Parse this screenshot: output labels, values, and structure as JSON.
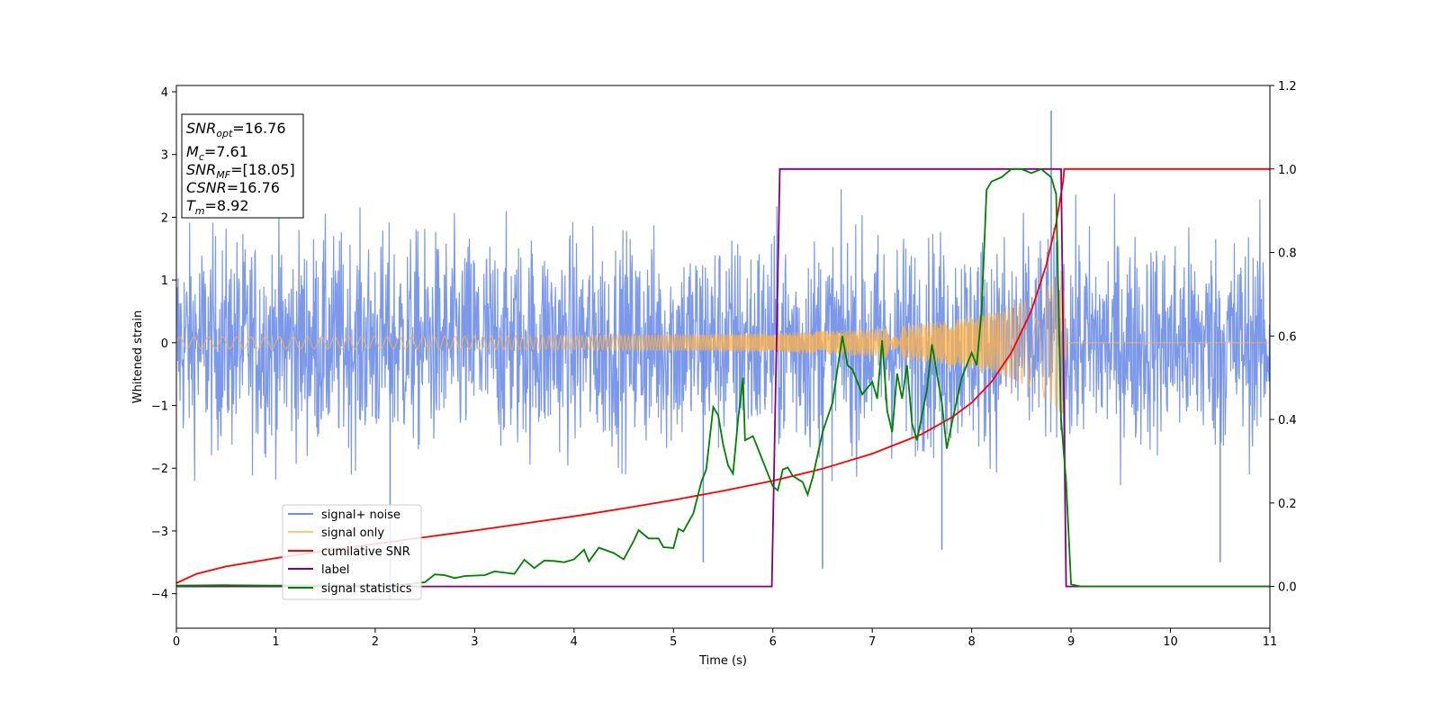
{
  "chart_data": {
    "type": "line",
    "xlabel": "Time (s)",
    "ylabel_left": "Whitened strain",
    "ylabel_right": "",
    "xlim": [
      0,
      11
    ],
    "ylim_left": [
      -4.55,
      4.1
    ],
    "ylim_right": [
      -0.1,
      1.2
    ],
    "x_ticks": [
      "0",
      "1",
      "2",
      "3",
      "4",
      "5",
      "6",
      "7",
      "8",
      "9",
      "10",
      "11"
    ],
    "y_ticks_left": [
      "−4",
      "−3",
      "−2",
      "−1",
      "0",
      "1",
      "2",
      "3",
      "4"
    ],
    "y_ticks_right": [
      "0.0",
      "0.2",
      "0.4",
      "0.6",
      "0.8",
      "1.0",
      "1.2"
    ],
    "grid": false,
    "legend_placement": "lower-left",
    "colors": {
      "signal_noise": "#6d8de8",
      "signal_only": "#ffb347",
      "cumulative_snr": "#ff0000",
      "label": "#800080",
      "signal_statistics": "#008000"
    },
    "series": [
      {
        "name": "signal+ noise",
        "axis": "left",
        "style": "dense noise, amplitude approx ±2.5 with spikes to 3.7",
        "spikes": [
          [
            2.15,
            -4.1
          ],
          [
            8.8,
            3.7
          ],
          [
            5.3,
            -3.5
          ],
          [
            6.5,
            -3.6
          ],
          [
            7.7,
            -3.3
          ],
          [
            10.5,
            -3.5
          ]
        ]
      },
      {
        "name": "signal only",
        "axis": "left",
        "style": "chirp oscillation",
        "envelope": [
          [
            0,
            0.09
          ],
          [
            2,
            0.1
          ],
          [
            4,
            0.11
          ],
          [
            6,
            0.15
          ],
          [
            7,
            0.22
          ],
          [
            7.8,
            0.36
          ],
          [
            8.3,
            0.52
          ],
          [
            8.6,
            0.72
          ],
          [
            8.8,
            0.95
          ],
          [
            8.92,
            1.2
          ],
          [
            8.95,
            0.0
          ],
          [
            11,
            0.0
          ]
        ]
      },
      {
        "name": "cumilative SNR",
        "axis": "right",
        "points": [
          [
            0,
            0.008
          ],
          [
            0.2,
            0.03
          ],
          [
            0.5,
            0.048
          ],
          [
            1,
            0.068
          ],
          [
            1.5,
            0.085
          ],
          [
            2,
            0.102
          ],
          [
            2.5,
            0.118
          ],
          [
            3,
            0.134
          ],
          [
            3.5,
            0.151
          ],
          [
            4,
            0.168
          ],
          [
            4.5,
            0.187
          ],
          [
            5,
            0.207
          ],
          [
            5.5,
            0.229
          ],
          [
            6,
            0.253
          ],
          [
            6.5,
            0.282
          ],
          [
            7,
            0.318
          ],
          [
            7.5,
            0.365
          ],
          [
            7.8,
            0.405
          ],
          [
            8,
            0.44
          ],
          [
            8.2,
            0.49
          ],
          [
            8.4,
            0.56
          ],
          [
            8.6,
            0.66
          ],
          [
            8.75,
            0.77
          ],
          [
            8.85,
            0.87
          ],
          [
            8.92,
            0.97
          ],
          [
            8.93,
            1.0
          ],
          [
            11,
            1.0
          ]
        ]
      },
      {
        "name": "label",
        "axis": "right",
        "points": [
          [
            0,
            0.0
          ],
          [
            5.99,
            0.0
          ],
          [
            6.07,
            1.0
          ],
          [
            8.9,
            1.0
          ],
          [
            8.95,
            0.0
          ],
          [
            11,
            0.0
          ]
        ]
      },
      {
        "name": "signal statistics",
        "axis": "right",
        "points": [
          [
            0,
            0.002
          ],
          [
            0.5,
            0.003
          ],
          [
            1,
            0.002
          ],
          [
            1.5,
            0.003
          ],
          [
            2,
            0.002
          ],
          [
            2.3,
            0.005
          ],
          [
            2.5,
            0.01
          ],
          [
            2.6,
            0.029
          ],
          [
            2.7,
            0.027
          ],
          [
            2.8,
            0.02
          ],
          [
            2.9,
            0.025
          ],
          [
            3.1,
            0.027
          ],
          [
            3.2,
            0.036
          ],
          [
            3.4,
            0.03
          ],
          [
            3.5,
            0.064
          ],
          [
            3.6,
            0.044
          ],
          [
            3.7,
            0.062
          ],
          [
            3.8,
            0.061
          ],
          [
            3.9,
            0.058
          ],
          [
            4.0,
            0.065
          ],
          [
            4.1,
            0.088
          ],
          [
            4.15,
            0.06
          ],
          [
            4.25,
            0.093
          ],
          [
            4.4,
            0.08
          ],
          [
            4.5,
            0.065
          ],
          [
            4.6,
            0.109
          ],
          [
            4.65,
            0.135
          ],
          [
            4.75,
            0.115
          ],
          [
            4.85,
            0.115
          ],
          [
            4.9,
            0.094
          ],
          [
            5.0,
            0.092
          ],
          [
            5.05,
            0.138
          ],
          [
            5.1,
            0.132
          ],
          [
            5.2,
            0.175
          ],
          [
            5.28,
            0.25
          ],
          [
            5.33,
            0.28
          ],
          [
            5.4,
            0.43
          ],
          [
            5.45,
            0.41
          ],
          [
            5.5,
            0.34
          ],
          [
            5.55,
            0.29
          ],
          [
            5.6,
            0.27
          ],
          [
            5.65,
            0.4
          ],
          [
            5.7,
            0.5
          ],
          [
            5.72,
            0.35
          ],
          [
            5.8,
            0.36
          ],
          [
            5.85,
            0.33
          ],
          [
            5.95,
            0.27
          ],
          [
            6.0,
            0.24
          ],
          [
            6.05,
            0.23
          ],
          [
            6.1,
            0.28
          ],
          [
            6.15,
            0.285
          ],
          [
            6.2,
            0.265
          ],
          [
            6.3,
            0.25
          ],
          [
            6.35,
            0.22
          ],
          [
            6.4,
            0.26
          ],
          [
            6.5,
            0.37
          ],
          [
            6.6,
            0.44
          ],
          [
            6.7,
            0.6
          ],
          [
            6.75,
            0.53
          ],
          [
            6.8,
            0.52
          ],
          [
            6.9,
            0.46
          ],
          [
            7.0,
            0.49
          ],
          [
            7.05,
            0.45
          ],
          [
            7.1,
            0.59
          ],
          [
            7.15,
            0.42
          ],
          [
            7.2,
            0.37
          ],
          [
            7.25,
            0.51
          ],
          [
            7.3,
            0.45
          ],
          [
            7.35,
            0.53
          ],
          [
            7.4,
            0.39
          ],
          [
            7.45,
            0.35
          ],
          [
            7.5,
            0.41
          ],
          [
            7.55,
            0.47
          ],
          [
            7.6,
            0.58
          ],
          [
            7.7,
            0.44
          ],
          [
            7.75,
            0.33
          ],
          [
            7.8,
            0.39
          ],
          [
            7.9,
            0.5
          ],
          [
            8.0,
            0.56
          ],
          [
            8.05,
            0.53
          ],
          [
            8.1,
            0.66
          ],
          [
            8.15,
            0.95
          ],
          [
            8.2,
            0.97
          ],
          [
            8.3,
            0.98
          ],
          [
            8.4,
            1.0
          ],
          [
            8.5,
            1.0
          ],
          [
            8.6,
            0.99
          ],
          [
            8.7,
            1.0
          ],
          [
            8.8,
            0.98
          ],
          [
            8.85,
            0.94
          ],
          [
            8.9,
            0.4
          ],
          [
            8.95,
            0.25
          ],
          [
            9.0,
            0.005
          ],
          [
            9.1,
            0.0
          ],
          [
            11,
            0.0
          ]
        ]
      }
    ]
  },
  "legend": [
    {
      "label": "signal+ noise",
      "color": "#6d8de8"
    },
    {
      "label": "signal only",
      "color": "#ffc97a"
    },
    {
      "label": "cumilative SNR",
      "color": "#ff0000"
    },
    {
      "label": "label",
      "color": "#800080"
    },
    {
      "label": "signal statistics",
      "color": "#008000"
    }
  ],
  "stats": {
    "snr_opt_base": "SNR",
    "snr_opt_sub": "opt",
    "snr_opt_value": "=16.76",
    "mc_base": "M",
    "mc_sub": "c",
    "mc_value": "=7.61",
    "snr_mf_base": "SNR",
    "snr_mf_sub": "MF",
    "snr_mf_value": "=[18.05]",
    "csnr_base": "CSNR",
    "csnr_value": "=16.76",
    "tm_base": "T",
    "tm_sub": "m",
    "tm_value": "=8.92"
  }
}
